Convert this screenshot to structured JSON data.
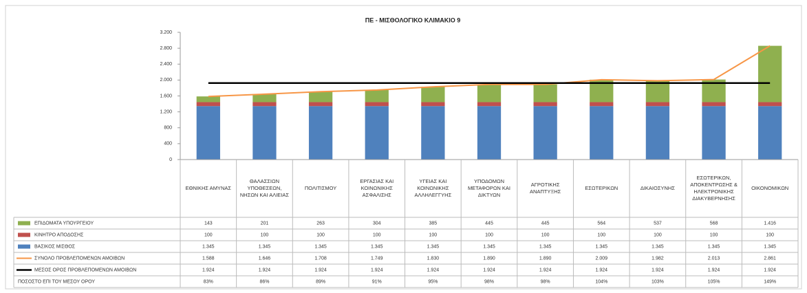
{
  "chart_data": {
    "type": "bar",
    "stacked": true,
    "title": "ΠΕ - ΜΙΣΘΟΛΟΓΙΚΟ ΚΛΙΜΑΚΙΟ 9",
    "categories": [
      "ΕΘΝΙΚΗΣ ΑΜΥΝΑΣ",
      "ΘΑΛΑΣΣΙΩΝ ΥΠΟΘΕΣΕΩΝ, ΝΗΣΩΝ ΚΑΙ ΑΛΙΕΙΑΣ",
      "ΠΟΛΙΤΙΣΜΟΥ",
      "ΕΡΓΑΣΙΑΣ ΚΑΙ ΚΟΙΝΩΝΙΚΗΣ ΑΣΦΑΛΙΣΗΣ",
      "ΥΓΕΙΑΣ ΚΑΙ ΚΟΙΝΩΝΙΚΗΣ ΑΛΛΗΛΕΓΓΥΗΣ",
      "ΥΠΟΔΟΜΩΝ ΜΕΤΑΦΟΡΩΝ ΚΑΙ ΔΙΚΤΥΩΝ",
      "ΑΓΡΟΤΙΚΗΣ ΑΝΑΠΤΥΞΗΣ",
      "ΕΣΩΤΕΡΙΚΩΝ",
      "ΔΙΚΑΙΟΣΥΝΗΣ",
      "ΕΣΩΤΕΡΙΚΩΝ, ΑΠΟΚΕΝΤΡΩΣΗΣ & ΗΛΕΚΤΡΟΝΙΚΗΣ ΔΙΑΚΥΒΕΡΝΗΣΗΣ",
      "ΟΙΚΟΝΟΜΙΚΩΝ"
    ],
    "ylim": [
      0,
      3200
    ],
    "yticks": [
      0,
      400,
      800,
      {
        "value": 1200,
        "label": "1.200"
      },
      {
        "value": 1600,
        "label": "1.600"
      },
      {
        "value": 2000,
        "label": "2.000"
      },
      {
        "value": 2400,
        "label": "2.400"
      },
      {
        "value": 2800,
        "label": "2.800"
      },
      {
        "value": 3200,
        "label": "3.200"
      }
    ],
    "grid": false,
    "series": [
      {
        "name": "ΕΠΙΔΟΜΑΤΑ ΥΠΟΥΡΓΕΙΟΥ",
        "kind": "bar",
        "color": "#8fb04f",
        "stack_level": 2,
        "values": [
          143,
          201,
          263,
          304,
          385,
          445,
          445,
          564,
          537,
          568,
          1416
        ],
        "value_labels": [
          "143",
          "201",
          "263",
          "304",
          "385",
          "445",
          "445",
          "564",
          "537",
          "568",
          "1.416"
        ]
      },
      {
        "name": "ΚΙΝΗΤΡΟ ΑΠΟΔΟΣΗΣ",
        "kind": "bar",
        "color": "#c0504d",
        "stack_level": 1,
        "values": [
          100,
          100,
          100,
          100,
          100,
          100,
          100,
          100,
          100,
          100,
          100
        ],
        "value_labels": [
          "100",
          "100",
          "100",
          "100",
          "100",
          "100",
          "100",
          "100",
          "100",
          "100",
          "100"
        ]
      },
      {
        "name": "ΒΑΣΙΚΟΣ ΜΙΣΘΟΣ",
        "kind": "bar",
        "color": "#4f81bd",
        "stack_level": 0,
        "values": [
          1345,
          1345,
          1345,
          1345,
          1345,
          1345,
          1345,
          1345,
          1345,
          1345,
          1345
        ],
        "value_labels": [
          "1.345",
          "1.345",
          "1.345",
          "1.345",
          "1.345",
          "1.345",
          "1.345",
          "1.345",
          "1.345",
          "1.345",
          "1.345"
        ]
      },
      {
        "name": "ΣΥΝΟΛΟ ΠΡΟΒΛΕΠΟΜΕΝΩΝ ΑΜΟΙΒΩΝ",
        "kind": "line",
        "color": "#f79646",
        "width": 2,
        "values": [
          1588,
          1646,
          1708,
          1749,
          1830,
          1890,
          1890,
          2009,
          1982,
          2013,
          2861
        ],
        "value_labels": [
          "1.588",
          "1.646",
          "1.708",
          "1.749",
          "1.830",
          "1.890",
          "1.890",
          "2.009",
          "1.982",
          "2.013",
          "2.861"
        ]
      },
      {
        "name": "ΜΕΣΟΣ ΟΡΟΣ ΠΡΟΒΛΕΠΟΜΕΝΩΝ ΑΜΟΙΒΩΝ",
        "kind": "line",
        "color": "#000000",
        "width": 2.5,
        "values": [
          1924,
          1924,
          1924,
          1924,
          1924,
          1924,
          1924,
          1924,
          1924,
          1924,
          1924
        ],
        "value_labels": [
          "1.924",
          "1.924",
          "1.924",
          "1.924",
          "1.924",
          "1.924",
          "1.924",
          "1.924",
          "1.924",
          "1.924",
          "1.924"
        ]
      }
    ],
    "percent_row": {
      "name": "ΠΟΣΟΣΤΟ ΕΠΙ ΤΟΥ ΜΕΣΟΥ ΟΡΟΥ",
      "values": [
        83,
        86,
        89,
        91,
        95,
        98,
        98,
        104,
        103,
        105,
        149
      ],
      "value_labels": [
        "83%",
        "86%",
        "89%",
        "91%",
        "95%",
        "98%",
        "98%",
        "104%",
        "103%",
        "105%",
        "149%"
      ]
    }
  }
}
